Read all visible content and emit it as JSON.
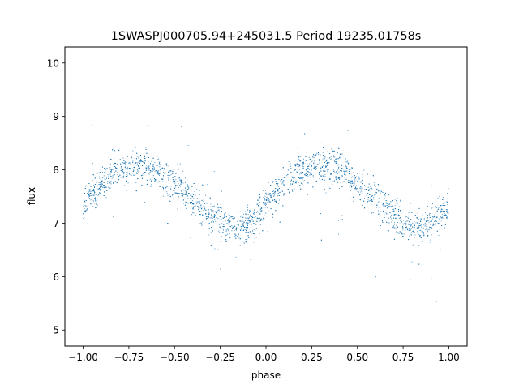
{
  "chart_data": {
    "type": "scatter",
    "title": "1SWASPJ000705.94+245031.5 Period 19235.01758s",
    "xlabel": "phase",
    "ylabel": "flux",
    "xlim": [
      -1.1,
      1.1
    ],
    "ylim": [
      4.7,
      10.3
    ],
    "xticks": [
      -1.0,
      -0.75,
      -0.5,
      -0.25,
      0.0,
      0.25,
      0.5,
      0.75,
      1.0
    ],
    "xtick_labels": [
      "−1.00",
      "−0.75",
      "−0.50",
      "−0.25",
      "0.00",
      "0.25",
      "0.50",
      "0.75",
      "1.00"
    ],
    "yticks": [
      5,
      6,
      7,
      8,
      9,
      10
    ],
    "ytick_labels": [
      "5",
      "6",
      "7",
      "8",
      "9",
      "10"
    ],
    "grid": false,
    "marker_color": "#1f77b4",
    "series": [
      {
        "x": [
          -1.0,
          -0.95,
          -0.9,
          -0.85,
          -0.8,
          -0.75,
          -0.7,
          -0.65,
          -0.6,
          -0.55,
          -0.5,
          -0.45,
          -0.4,
          -0.35,
          -0.3,
          -0.25,
          -0.2,
          -0.15,
          -0.1,
          -0.05,
          0.0,
          0.05,
          0.1,
          0.15,
          0.2,
          0.25,
          0.3,
          0.35,
          0.4,
          0.45,
          0.5,
          0.55,
          0.6,
          0.65,
          0.7,
          0.75,
          0.8,
          0.85,
          0.9,
          0.95,
          1.0
        ],
        "y": [
          7.35,
          7.55,
          7.75,
          7.9,
          8.0,
          8.05,
          8.1,
          8.05,
          8.0,
          7.9,
          7.75,
          7.6,
          7.45,
          7.3,
          7.15,
          7.0,
          6.95,
          6.95,
          7.0,
          7.1,
          7.3,
          7.55,
          7.75,
          7.9,
          8.0,
          8.05,
          8.1,
          8.05,
          8.0,
          7.9,
          7.75,
          7.6,
          7.45,
          7.3,
          7.15,
          7.0,
          6.95,
          6.95,
          7.0,
          7.1,
          7.35
        ],
        "dip_phases": [
          -0.13,
          0.87
        ],
        "dip_min_flux": 5.5
      }
    ]
  }
}
